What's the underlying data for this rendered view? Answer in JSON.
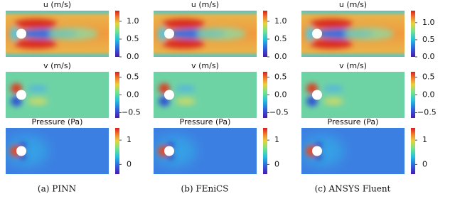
{
  "chart_data": [
    {
      "type": "field",
      "title": "u (m/s)",
      "clim": [
        0,
        1.3
      ],
      "cticks": [
        {
          "value": 0,
          "label": "0.0"
        },
        0.5,
        {
          "value": 1,
          "label": "1.0"
        }
      ]
    },
    {
      "type": "field",
      "title": "u (m/s)",
      "clim": [
        0,
        1.3
      ],
      "cticks": [
        {
          "value": 0,
          "label": "0.0"
        },
        0.5,
        {
          "value": 1,
          "label": "1.0"
        }
      ]
    },
    {
      "type": "field",
      "title": "u (m/s)",
      "clim": [
        0,
        1.35
      ],
      "cticks": [
        {
          "value": 0,
          "label": "0.0"
        },
        0.5,
        {
          "value": 1,
          "label": "1.0"
        }
      ]
    },
    {
      "type": "field",
      "title": "v (m/s)",
      "clim": [
        -0.65,
        0.65
      ],
      "cticks": [
        {
          "value": -0.5,
          "label": "−0.5"
        },
        {
          "value": 0,
          "label": "0.0"
        },
        0.5
      ]
    },
    {
      "type": "field",
      "title": "v (m/s)",
      "clim": [
        -0.65,
        0.65
      ],
      "cticks": [
        {
          "value": -0.5,
          "label": "−0.5"
        },
        {
          "value": 0,
          "label": "0.0"
        },
        0.5
      ]
    },
    {
      "type": "field",
      "title": "v (m/s)",
      "clim": [
        -0.65,
        0.65
      ],
      "cticks": [
        {
          "value": -0.5,
          "label": "−0.5"
        },
        {
          "value": 0,
          "label": "0.0"
        },
        0.5
      ]
    },
    {
      "type": "field",
      "title": "Pressure (Pa)",
      "clim": [
        -0.4,
        1.5
      ],
      "cticks": [
        0,
        1
      ]
    },
    {
      "type": "field",
      "title": "Pressure (Pa)",
      "clim": [
        -0.4,
        1.5
      ],
      "cticks": [
        0,
        1
      ]
    },
    {
      "type": "field",
      "title": "Pressure (Pa)",
      "clim": [
        -0.4,
        1.5
      ],
      "cticks": [
        0,
        1
      ]
    }
  ],
  "captions": [
    "(a) PINN",
    "(b) FEniCS",
    "(c) ANSYS Fluent"
  ]
}
